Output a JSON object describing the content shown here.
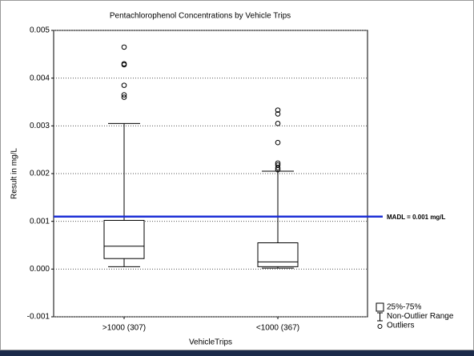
{
  "chart_data": {
    "type": "box",
    "title": "Pentachlorophenol Concentrations by Vehicle Trips",
    "x_label": "VehicleTrips",
    "y_label": "Result in mg/L",
    "categories": [
      ">1000 (307)",
      "<1000 (367)"
    ],
    "boxes": [
      {
        "min": 5e-05,
        "q1": 0.00022,
        "median": 0.00048,
        "q3": 0.00102,
        "max": 0.00305,
        "outliers": [
          0.00465,
          0.0043,
          0.00428,
          0.00385,
          0.00365,
          0.0036
        ]
      },
      {
        "min": 2e-05,
        "q1": 5e-05,
        "median": 0.00015,
        "q3": 0.00055,
        "max": 0.00205,
        "outliers": [
          0.00333,
          0.00325,
          0.00305,
          0.00265,
          0.00222,
          0.00218,
          0.00212,
          0.00208
        ]
      }
    ],
    "color": "#000000",
    "ylim": [
      -0.001,
      0.005
    ],
    "yticks": [
      -0.001,
      {
        "value": 0,
        "label": "0.000"
      },
      0.001,
      0.002,
      0.003,
      0.004,
      0.005
    ],
    "grid": true,
    "reference_line": {
      "value": 0.0011,
      "label": "MADL = 0.001 mg/L",
      "color": "#1c2fd6"
    },
    "legend": {
      "position": "lower right",
      "items": [
        "25%-75%",
        "Non-Outlier Range",
        "Outliers"
      ]
    }
  }
}
